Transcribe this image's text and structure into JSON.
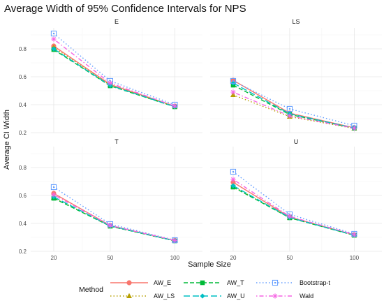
{
  "chart_data": {
    "type": "line",
    "title": "Average Width of 95% Confidence Intervals for NPS",
    "xlabel": "Sample Size",
    "ylabel": "Average CI Width",
    "x": [
      20,
      50,
      100
    ],
    "x_tick_labels": [
      "20",
      "50",
      "100"
    ],
    "ylim": [
      0.2,
      0.95
    ],
    "y_ticks": [
      0.2,
      0.4,
      0.6,
      0.8
    ],
    "y_tick_labels": [
      "0.2",
      "0.4",
      "0.6",
      "0.8"
    ],
    "legend_title": "Method",
    "legend_position": "bottom",
    "methods": [
      {
        "name": "AW_E",
        "color": "#F8766D",
        "marker": "circle",
        "dash": "solid"
      },
      {
        "name": "AW_LS",
        "color": "#B79F00",
        "marker": "triangle",
        "dash": "dotted"
      },
      {
        "name": "AW_T",
        "color": "#00BA38",
        "marker": "square",
        "dash": "dashed"
      },
      {
        "name": "AW_U",
        "color": "#00BFC4",
        "marker": "diamond",
        "dash": "longdash"
      },
      {
        "name": "Bootstrap-t",
        "color": "#619CFF",
        "marker": "square-open",
        "dash": "dotted"
      },
      {
        "name": "Wald",
        "color": "#F564E3",
        "marker": "star",
        "dash": "dotdash"
      }
    ],
    "panels": [
      {
        "label": "E",
        "series": {
          "AW_E": [
            0.82,
            0.545,
            0.39
          ],
          "AW_LS": [
            0.81,
            0.54,
            0.388
          ],
          "AW_T": [
            0.795,
            0.535,
            0.385
          ],
          "AW_U": [
            0.8,
            0.538,
            0.386
          ],
          "Bootstrap-t": [
            0.91,
            0.57,
            0.4
          ],
          "Wald": [
            0.87,
            0.555,
            0.39
          ]
        }
      },
      {
        "label": "LS",
        "series": {
          "AW_E": [
            0.575,
            0.34,
            0.235
          ],
          "AW_LS": [
            0.47,
            0.315,
            0.23
          ],
          "AW_T": [
            0.54,
            0.33,
            0.232
          ],
          "AW_U": [
            0.555,
            0.335,
            0.233
          ],
          "Bootstrap-t": [
            0.57,
            0.37,
            0.25
          ],
          "Wald": [
            0.49,
            0.32,
            0.232
          ]
        }
      },
      {
        "label": "T",
        "series": {
          "AW_E": [
            0.615,
            0.385,
            0.277
          ],
          "AW_LS": [
            0.585,
            0.38,
            0.275
          ],
          "AW_T": [
            0.58,
            0.38,
            0.275
          ],
          "AW_U": [
            0.59,
            0.382,
            0.276
          ],
          "Bootstrap-t": [
            0.66,
            0.395,
            0.28
          ],
          "Wald": [
            0.605,
            0.385,
            0.278
          ]
        }
      },
      {
        "label": "U",
        "series": {
          "AW_E": [
            0.695,
            0.445,
            0.318
          ],
          "AW_LS": [
            0.665,
            0.44,
            0.315
          ],
          "AW_T": [
            0.66,
            0.44,
            0.315
          ],
          "AW_U": [
            0.67,
            0.442,
            0.316
          ],
          "Bootstrap-t": [
            0.77,
            0.465,
            0.325
          ],
          "Wald": [
            0.715,
            0.45,
            0.32
          ]
        }
      }
    ]
  }
}
